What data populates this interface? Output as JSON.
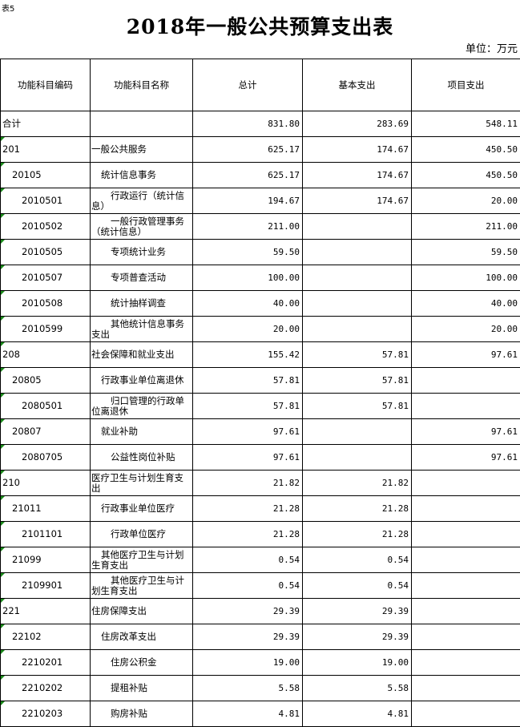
{
  "doc": {
    "tag": "表5",
    "title": "2018年一般公共预算支出表",
    "unit": "单位：万元"
  },
  "headers": [
    "功能科目编码",
    "功能科目名称",
    "总计",
    "基本支出",
    "项目支出"
  ],
  "rows": [
    {
      "level": 0,
      "code": "合计",
      "name": "",
      "total": "831.80",
      "basic": "283.69",
      "project": "548.11"
    },
    {
      "level": 0,
      "code": "201",
      "name": "一般公共服务",
      "total": "625.17",
      "basic": "174.67",
      "project": "450.50"
    },
    {
      "level": 1,
      "code": "20105",
      "name": "统计信息事务",
      "total": "625.17",
      "basic": "174.67",
      "project": "450.50"
    },
    {
      "level": 2,
      "code": "2010501",
      "name": "行政运行（统计信息）",
      "total": "194.67",
      "basic": "174.67",
      "project": "20.00"
    },
    {
      "level": 2,
      "code": "2010502",
      "name": "一般行政管理事务（统计信息）",
      "total": "211.00",
      "basic": "",
      "project": "211.00"
    },
    {
      "level": 2,
      "code": "2010505",
      "name": "专项统计业务",
      "total": "59.50",
      "basic": "",
      "project": "59.50"
    },
    {
      "level": 2,
      "code": "2010507",
      "name": "专项普查活动",
      "total": "100.00",
      "basic": "",
      "project": "100.00"
    },
    {
      "level": 2,
      "code": "2010508",
      "name": "统计抽样调查",
      "total": "40.00",
      "basic": "",
      "project": "40.00"
    },
    {
      "level": 2,
      "code": "2010599",
      "name": "其他统计信息事务支出",
      "total": "20.00",
      "basic": "",
      "project": "20.00"
    },
    {
      "level": 0,
      "code": "208",
      "name": "社会保障和就业支出",
      "total": "155.42",
      "basic": "57.81",
      "project": "97.61"
    },
    {
      "level": 1,
      "code": "20805",
      "name": "行政事业单位离退休",
      "total": "57.81",
      "basic": "57.81",
      "project": ""
    },
    {
      "level": 2,
      "code": "2080501",
      "name": "归口管理的行政单位离退休",
      "total": "57.81",
      "basic": "57.81",
      "project": ""
    },
    {
      "level": 1,
      "code": "20807",
      "name": "就业补助",
      "total": "97.61",
      "basic": "",
      "project": "97.61"
    },
    {
      "level": 2,
      "code": "2080705",
      "name": "公益性岗位补贴",
      "total": "97.61",
      "basic": "",
      "project": "97.61"
    },
    {
      "level": 0,
      "code": "210",
      "name": "医疗卫生与计划生育支出",
      "total": "21.82",
      "basic": "21.82",
      "project": ""
    },
    {
      "level": 1,
      "code": "21011",
      "name": "行政事业单位医疗",
      "total": "21.28",
      "basic": "21.28",
      "project": ""
    },
    {
      "level": 2,
      "code": "2101101",
      "name": "行政单位医疗",
      "total": "21.28",
      "basic": "21.28",
      "project": ""
    },
    {
      "level": 1,
      "code": "21099",
      "name": "其他医疗卫生与计划生育支出",
      "total": "0.54",
      "basic": "0.54",
      "project": ""
    },
    {
      "level": 2,
      "code": "2109901",
      "name": "其他医疗卫生与计划生育支出",
      "total": "0.54",
      "basic": "0.54",
      "project": ""
    },
    {
      "level": 0,
      "code": "221",
      "name": "住房保障支出",
      "total": "29.39",
      "basic": "29.39",
      "project": ""
    },
    {
      "level": 1,
      "code": "22102",
      "name": "住房改革支出",
      "total": "29.39",
      "basic": "29.39",
      "project": ""
    },
    {
      "level": 2,
      "code": "2210201",
      "name": "住房公积金",
      "total": "19.00",
      "basic": "19.00",
      "project": ""
    },
    {
      "level": 2,
      "code": "2210202",
      "name": "提租补贴",
      "total": "5.58",
      "basic": "5.58",
      "project": ""
    },
    {
      "level": 2,
      "code": "2210203",
      "name": "购房补贴",
      "total": "4.81",
      "basic": "4.81",
      "project": ""
    }
  ]
}
